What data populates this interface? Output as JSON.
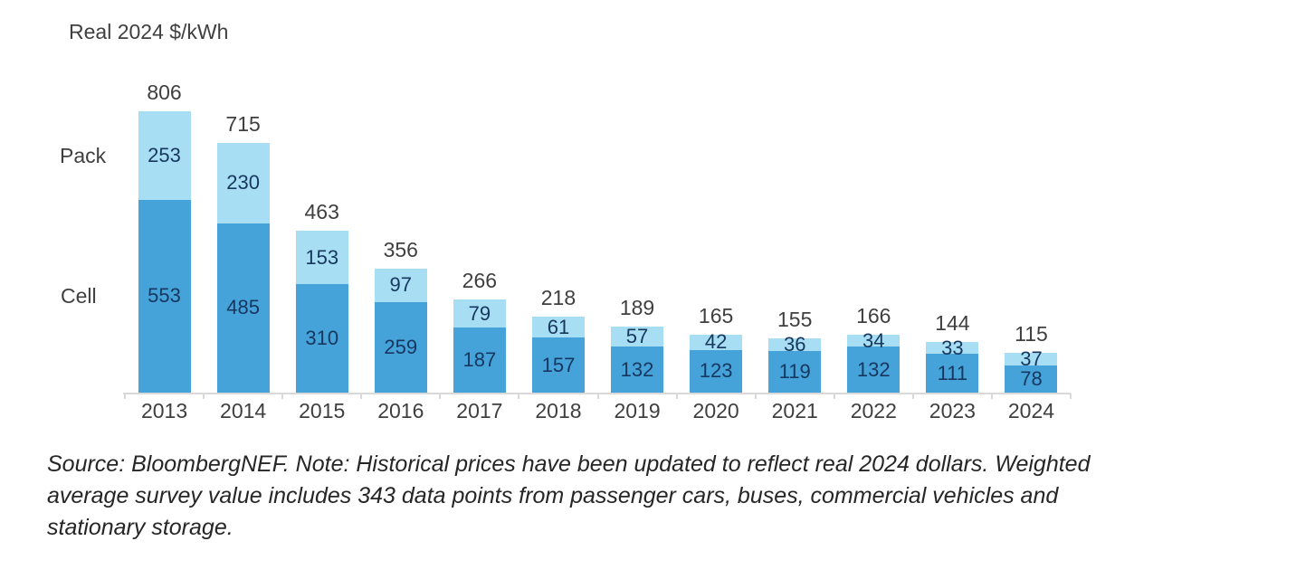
{
  "title": "Real 2024 $/kWh",
  "chart_data": {
    "type": "bar",
    "stacked": true,
    "title": "Real 2024 $/kWh",
    "ylabel": "Real 2024 $/kWh",
    "xlabel": "",
    "categories": [
      "2013",
      "2014",
      "2015",
      "2016",
      "2017",
      "2018",
      "2019",
      "2020",
      "2021",
      "2022",
      "2023",
      "2024"
    ],
    "series": [
      {
        "name": "Cell",
        "color": "#45a3da",
        "values": [
          553,
          485,
          310,
          259,
          187,
          157,
          132,
          123,
          119,
          132,
          111,
          78
        ]
      },
      {
        "name": "Pack",
        "color": "#a7def3",
        "values": [
          253,
          230,
          153,
          97,
          79,
          61,
          57,
          42,
          36,
          34,
          33,
          37
        ]
      }
    ],
    "totals": [
      806,
      715,
      463,
      356,
      266,
      218,
      189,
      165,
      155,
      166,
      144,
      115
    ],
    "ylim": [
      0,
      806
    ],
    "grid": false,
    "legend_position": "left of first bar, aligned to Pack and Cell segments",
    "value_labels": "inside each segment, totals above bars"
  },
  "source_note": {
    "lines": [
      "Source: BloombergNEF. Note: Historical prices have been updated to reflect real 2024 dollars. Weighted",
      "average survey value includes 343 data points from passenger cars, buses, commercial vehicles and",
      "stationary storage."
    ]
  },
  "colors": {
    "cell_bar": "#45a3da",
    "pack_bar": "#a7def3",
    "bar_value_text": "#17375e",
    "label_text": "#3f3f3f",
    "axis_line": "#d9d9d9",
    "source_text": "#262626",
    "background": "#ffffff"
  }
}
